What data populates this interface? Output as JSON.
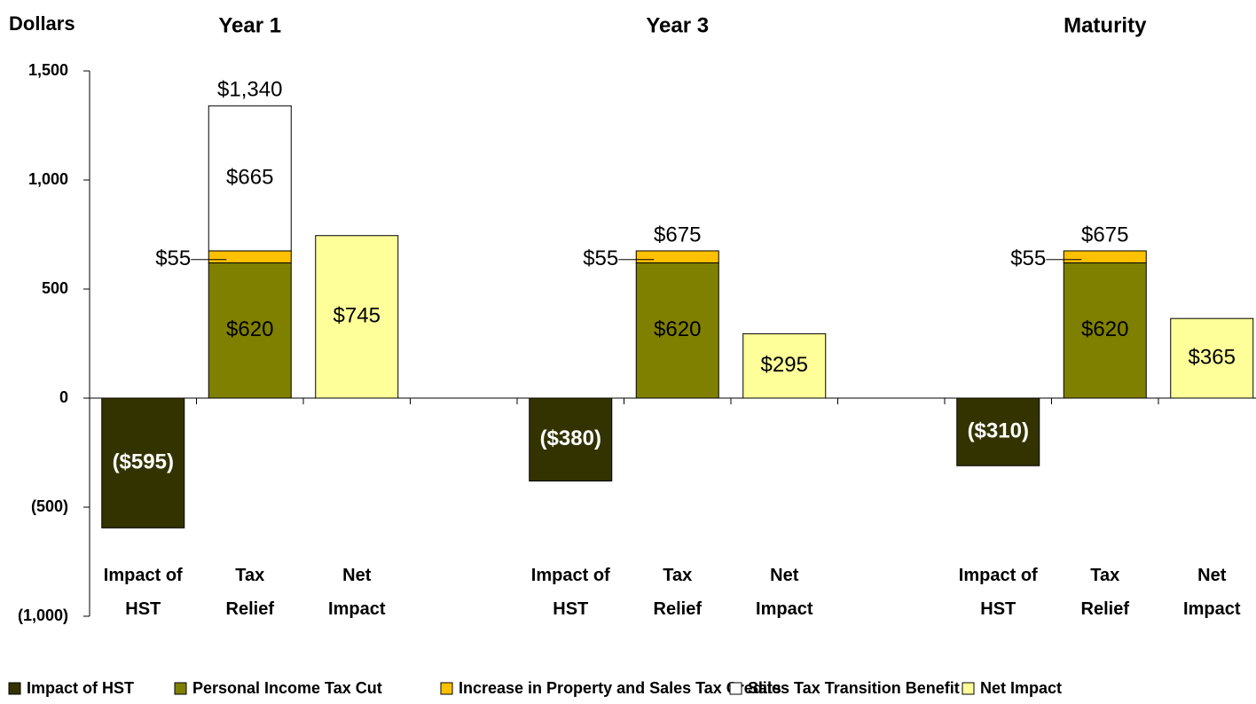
{
  "chart_data": {
    "type": "bar",
    "stacked": true,
    "y_axis_label": "Dollars",
    "groups": [
      "Year 1",
      "Year 3",
      "Maturity"
    ],
    "categories": [
      "Impact of HST",
      "Tax Relief",
      "Net Impact",
      null,
      "Impact of HST",
      "Tax Relief",
      "Net Impact",
      null,
      "Impact of HST",
      "Tax Relief",
      "Net Impact"
    ],
    "series": [
      {
        "name": "Impact of HST",
        "color": "#333300",
        "values": [
          -595,
          null,
          null,
          null,
          -380,
          null,
          null,
          null,
          -310,
          null,
          null
        ],
        "value_labels": [
          "($595)",
          null,
          null,
          null,
          "($380)",
          null,
          null,
          null,
          "($310)",
          null,
          null
        ]
      },
      {
        "name": "Personal Income Tax Cut",
        "color": "#808000",
        "values": [
          null,
          620,
          null,
          null,
          null,
          620,
          null,
          null,
          null,
          620,
          null
        ],
        "value_labels": [
          null,
          "$620",
          null,
          null,
          null,
          "$620",
          null,
          null,
          null,
          "$620",
          null
        ]
      },
      {
        "name": "Increase in Property and Sales Tax Credits",
        "color": "#ffc000",
        "values": [
          null,
          55,
          null,
          null,
          null,
          55,
          null,
          null,
          null,
          55,
          null
        ],
        "value_labels": [
          null,
          "$55",
          null,
          null,
          null,
          "$55",
          null,
          null,
          null,
          "$55",
          null
        ]
      },
      {
        "name": "Sales Tax Transition Benefit",
        "color": "#ffffff",
        "values": [
          null,
          665,
          null,
          null,
          null,
          null,
          null,
          null,
          null,
          null,
          null
        ],
        "value_labels": [
          null,
          "$665",
          null,
          null,
          null,
          null,
          null,
          null,
          null,
          null,
          null
        ]
      },
      {
        "name": "Net Impact",
        "color": "#ffff99",
        "values": [
          null,
          null,
          745,
          null,
          null,
          null,
          295,
          null,
          null,
          null,
          365
        ],
        "value_labels": [
          null,
          null,
          "$745",
          null,
          null,
          null,
          "$295",
          null,
          null,
          null,
          "$365"
        ]
      }
    ],
    "totals": {
      "values": [
        null,
        1340,
        null,
        null,
        null,
        675,
        null,
        null,
        null,
        675,
        null
      ],
      "labels": [
        null,
        "$1,340",
        null,
        null,
        null,
        "$675",
        null,
        null,
        null,
        "$675",
        null
      ]
    },
    "ylim": [
      -1000,
      1500
    ],
    "yticks": [
      {
        "value": -1000,
        "label": "(1,000)"
      },
      {
        "value": -500,
        "label": "(500)"
      },
      0,
      500,
      {
        "value": 1000,
        "label": "1,000"
      },
      {
        "value": 1500,
        "label": "1,500"
      }
    ],
    "legend": "bottom"
  }
}
